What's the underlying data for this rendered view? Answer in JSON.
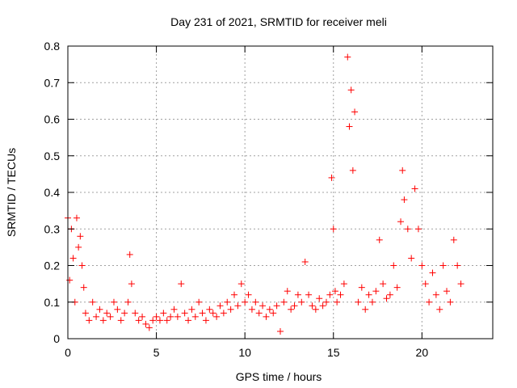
{
  "chart_data": {
    "type": "scatter",
    "title": "Day 231 of 2021, SRMTID for receiver meli",
    "xlabel": "GPS time / hours",
    "ylabel": "SRMTID / TECUs",
    "xlim": [
      0,
      24
    ],
    "ylim": [
      0,
      0.8
    ],
    "xticks": [
      0,
      5,
      10,
      15,
      20
    ],
    "yticks": [
      0,
      0.1,
      0.2,
      0.3,
      0.4,
      0.5,
      0.6,
      0.7,
      0.8
    ],
    "grid": true,
    "marker": "+",
    "series": [
      {
        "name": "SRMTID",
        "color": "#ff0000",
        "x": [
          0.0,
          0.1,
          0.2,
          0.3,
          0.4,
          0.5,
          0.6,
          0.7,
          0.8,
          0.9,
          1.0,
          1.2,
          1.4,
          1.6,
          1.8,
          2.0,
          2.2,
          2.4,
          2.6,
          2.8,
          3.0,
          3.2,
          3.4,
          3.5,
          3.6,
          3.8,
          4.0,
          4.2,
          4.4,
          4.6,
          4.8,
          5.0,
          5.2,
          5.4,
          5.6,
          5.8,
          6.0,
          6.2,
          6.4,
          6.6,
          6.8,
          7.0,
          7.2,
          7.4,
          7.6,
          7.8,
          8.0,
          8.2,
          8.4,
          8.6,
          8.8,
          9.0,
          9.2,
          9.4,
          9.6,
          9.8,
          10.0,
          10.2,
          10.4,
          10.6,
          10.8,
          11.0,
          11.2,
          11.4,
          11.6,
          11.8,
          12.0,
          12.2,
          12.4,
          12.6,
          12.8,
          13.0,
          13.2,
          13.4,
          13.6,
          13.8,
          14.0,
          14.2,
          14.4,
          14.6,
          14.8,
          14.9,
          15.0,
          15.1,
          15.2,
          15.4,
          15.6,
          15.8,
          15.9,
          16.0,
          16.1,
          16.2,
          16.4,
          16.6,
          16.8,
          17.0,
          17.2,
          17.4,
          17.6,
          17.8,
          18.0,
          18.2,
          18.4,
          18.6,
          18.8,
          18.9,
          19.0,
          19.2,
          19.4,
          19.6,
          19.8,
          20.0,
          20.2,
          20.4,
          20.6,
          20.8,
          21.0,
          21.2,
          21.4,
          21.6,
          21.8,
          22.0,
          22.2
        ],
        "y": [
          0.33,
          0.16,
          0.3,
          0.22,
          0.1,
          0.33,
          0.25,
          0.28,
          0.2,
          0.14,
          0.07,
          0.05,
          0.1,
          0.06,
          0.08,
          0.05,
          0.07,
          0.06,
          0.1,
          0.08,
          0.05,
          0.07,
          0.1,
          0.23,
          0.15,
          0.07,
          0.05,
          0.06,
          0.04,
          0.03,
          0.05,
          0.06,
          0.05,
          0.07,
          0.05,
          0.06,
          0.08,
          0.06,
          0.15,
          0.07,
          0.05,
          0.08,
          0.06,
          0.1,
          0.07,
          0.05,
          0.08,
          0.07,
          0.06,
          0.09,
          0.07,
          0.1,
          0.08,
          0.12,
          0.09,
          0.15,
          0.1,
          0.12,
          0.08,
          0.1,
          0.07,
          0.09,
          0.06,
          0.08,
          0.07,
          0.09,
          0.02,
          0.1,
          0.13,
          0.08,
          0.09,
          0.12,
          0.1,
          0.21,
          0.12,
          0.09,
          0.08,
          0.11,
          0.09,
          0.1,
          0.12,
          0.44,
          0.3,
          0.13,
          0.1,
          0.12,
          0.15,
          0.77,
          0.58,
          0.68,
          0.46,
          0.62,
          0.1,
          0.14,
          0.08,
          0.12,
          0.1,
          0.13,
          0.27,
          0.15,
          0.11,
          0.12,
          0.2,
          0.14,
          0.32,
          0.46,
          0.38,
          0.3,
          0.22,
          0.41,
          0.3,
          0.2,
          0.15,
          0.1,
          0.18,
          0.12,
          0.08,
          0.2,
          0.13,
          0.1,
          0.27,
          0.2,
          0.15
        ]
      }
    ]
  }
}
